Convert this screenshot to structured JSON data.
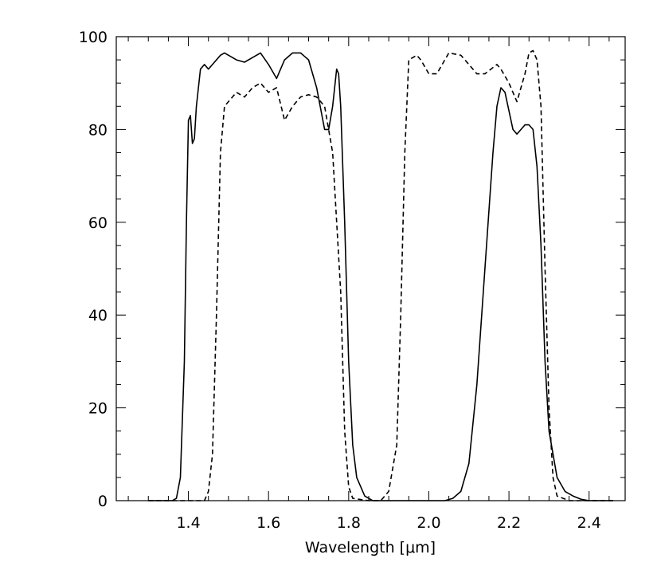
{
  "chart_data": {
    "type": "line",
    "title": "",
    "xlabel": "Wavelength [μm]",
    "ylabel": "",
    "xlim": [
      1.22,
      2.49
    ],
    "ylim": [
      0,
      100
    ],
    "xticks": [
      1.4,
      1.6,
      1.8,
      2.0,
      2.2,
      2.4
    ],
    "xtick_labels": [
      "1.4",
      "1.6",
      "1.8",
      "2.0",
      "2.2",
      "2.4"
    ],
    "yticks": [
      0,
      20,
      40,
      60,
      80,
      100
    ],
    "ytick_labels": [
      "0",
      "20",
      "40",
      "60",
      "80",
      "100"
    ],
    "grid": false,
    "legend": "none",
    "series": [
      {
        "style": "solid",
        "color": "#000000",
        "points": [
          [
            1.3,
            0
          ],
          [
            1.36,
            0
          ],
          [
            1.37,
            0.5
          ],
          [
            1.38,
            5
          ],
          [
            1.39,
            30
          ],
          [
            1.395,
            60
          ],
          [
            1.4,
            82
          ],
          [
            1.405,
            83
          ],
          [
            1.41,
            77
          ],
          [
            1.415,
            78
          ],
          [
            1.42,
            85
          ],
          [
            1.43,
            93
          ],
          [
            1.44,
            94
          ],
          [
            1.45,
            93
          ],
          [
            1.46,
            94
          ],
          [
            1.48,
            96
          ],
          [
            1.49,
            96.5
          ],
          [
            1.5,
            96
          ],
          [
            1.52,
            95
          ],
          [
            1.54,
            94.5
          ],
          [
            1.56,
            95.5
          ],
          [
            1.58,
            96.5
          ],
          [
            1.6,
            94
          ],
          [
            1.62,
            91
          ],
          [
            1.64,
            95
          ],
          [
            1.66,
            96.5
          ],
          [
            1.68,
            96.5
          ],
          [
            1.7,
            95
          ],
          [
            1.72,
            89
          ],
          [
            1.74,
            80
          ],
          [
            1.75,
            80
          ],
          [
            1.76,
            85
          ],
          [
            1.77,
            93
          ],
          [
            1.775,
            92
          ],
          [
            1.78,
            85
          ],
          [
            1.79,
            60
          ],
          [
            1.8,
            30
          ],
          [
            1.81,
            12
          ],
          [
            1.82,
            5
          ],
          [
            1.84,
            1
          ],
          [
            1.86,
            0
          ],
          [
            1.95,
            0
          ],
          [
            2.0,
            0
          ],
          [
            2.04,
            0
          ],
          [
            2.06,
            0.5
          ],
          [
            2.08,
            2
          ],
          [
            2.1,
            8
          ],
          [
            2.12,
            25
          ],
          [
            2.14,
            50
          ],
          [
            2.16,
            75
          ],
          [
            2.17,
            85
          ],
          [
            2.18,
            89
          ],
          [
            2.19,
            88
          ],
          [
            2.2,
            84
          ],
          [
            2.21,
            80
          ],
          [
            2.22,
            79
          ],
          [
            2.23,
            80
          ],
          [
            2.24,
            81
          ],
          [
            2.25,
            81
          ],
          [
            2.26,
            80
          ],
          [
            2.27,
            72
          ],
          [
            2.28,
            55
          ],
          [
            2.29,
            30
          ],
          [
            2.3,
            15
          ],
          [
            2.32,
            5
          ],
          [
            2.34,
            2
          ],
          [
            2.36,
            1
          ],
          [
            2.38,
            0.3
          ],
          [
            2.4,
            0
          ],
          [
            2.46,
            0
          ]
        ]
      },
      {
        "style": "dashed",
        "color": "#000000",
        "points": [
          [
            1.3,
            0
          ],
          [
            1.44,
            0
          ],
          [
            1.45,
            2
          ],
          [
            1.46,
            10
          ],
          [
            1.47,
            40
          ],
          [
            1.48,
            75
          ],
          [
            1.49,
            85
          ],
          [
            1.5,
            86
          ],
          [
            1.52,
            88
          ],
          [
            1.54,
            87
          ],
          [
            1.56,
            89
          ],
          [
            1.58,
            90
          ],
          [
            1.6,
            88
          ],
          [
            1.62,
            89
          ],
          [
            1.64,
            82
          ],
          [
            1.66,
            85
          ],
          [
            1.68,
            87
          ],
          [
            1.7,
            87.5
          ],
          [
            1.72,
            87
          ],
          [
            1.74,
            85
          ],
          [
            1.76,
            75
          ],
          [
            1.78,
            45
          ],
          [
            1.79,
            15
          ],
          [
            1.8,
            3
          ],
          [
            1.81,
            0.5
          ],
          [
            1.85,
            0
          ],
          [
            1.88,
            0
          ],
          [
            1.9,
            2
          ],
          [
            1.92,
            12
          ],
          [
            1.93,
            40
          ],
          [
            1.94,
            75
          ],
          [
            1.95,
            95
          ],
          [
            1.97,
            96
          ],
          [
            1.98,
            95
          ],
          [
            2.0,
            92
          ],
          [
            2.02,
            92
          ],
          [
            2.05,
            96.5
          ],
          [
            2.08,
            96
          ],
          [
            2.1,
            94
          ],
          [
            2.12,
            92
          ],
          [
            2.14,
            92
          ],
          [
            2.17,
            94
          ],
          [
            2.18,
            93
          ],
          [
            2.2,
            90
          ],
          [
            2.22,
            86
          ],
          [
            2.24,
            92
          ],
          [
            2.25,
            96.5
          ],
          [
            2.26,
            97
          ],
          [
            2.27,
            95
          ],
          [
            2.28,
            85
          ],
          [
            2.29,
            50
          ],
          [
            2.3,
            20
          ],
          [
            2.31,
            5
          ],
          [
            2.32,
            1
          ],
          [
            2.35,
            0
          ],
          [
            2.46,
            0
          ]
        ]
      }
    ]
  }
}
